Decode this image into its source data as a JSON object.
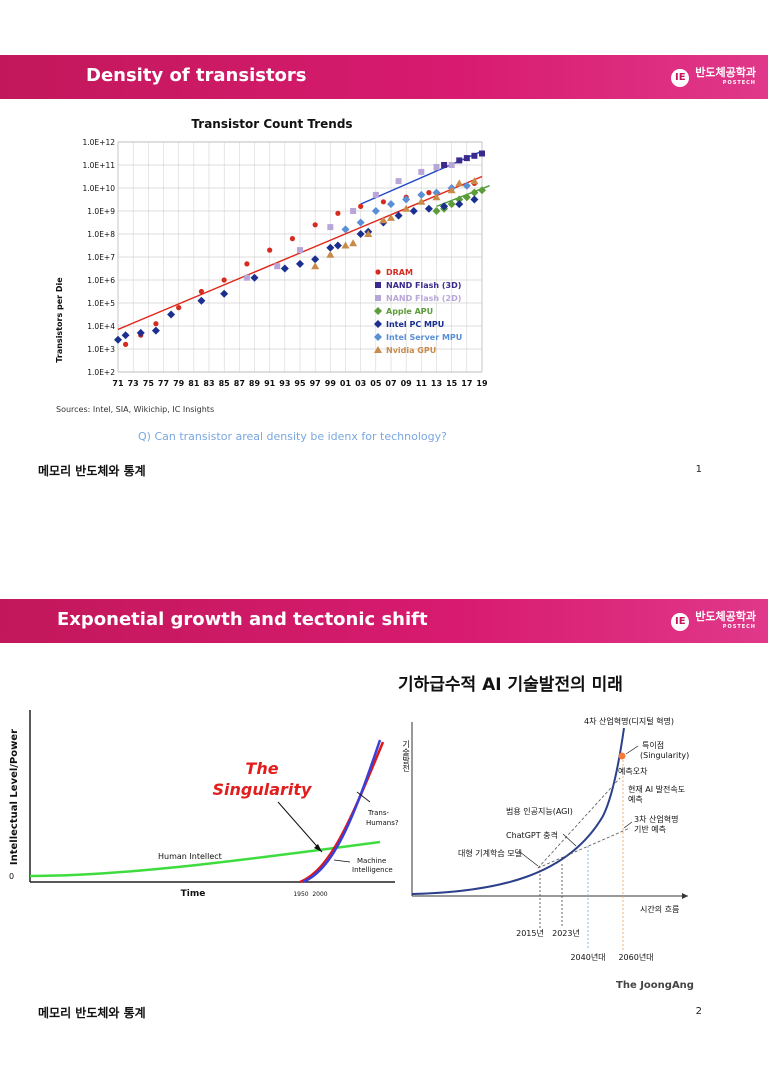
{
  "slide1": {
    "title": "Density of transistors",
    "logo_text": "반도체공학과",
    "logo_sub": "POSTECH",
    "chart_title": "Transistor Count Trends",
    "ylabel": "Transistors per Die",
    "sources": "Sources:  Intel, SIA, Wikichip, IC Insights",
    "question": "Q) Can transistor areal density be idenx for technology?",
    "footer": "메모리 반도체와 통계",
    "page": "1",
    "chart_data": {
      "type": "scatter",
      "title": "Transistor Count Trends",
      "ylabel": "Transistors per Die",
      "xlabel": "",
      "y_scale": "log",
      "y_ticks": [
        "1.0E+2",
        "1.0E+3",
        "1.0E+4",
        "1.0E+5",
        "1.0E+6",
        "1.0E+7",
        "1.0E+8",
        "1.0E+9",
        "1.0E+10",
        "1.0E+11",
        "1.0E+12"
      ],
      "x_ticks": [
        "71",
        "73",
        "75",
        "77",
        "79",
        "81",
        "83",
        "85",
        "87",
        "89",
        "91",
        "93",
        "95",
        "97",
        "99",
        "01",
        "03",
        "05",
        "07",
        "09",
        "11",
        "13",
        "15",
        "17",
        "19"
      ],
      "legend": [
        "DRAM",
        "NAND Flash (3D)",
        "NAND Flash (2D)",
        "Apple APU",
        "Intel PC MPU",
        "Intel Server MPU",
        "Nvidia GPU"
      ],
      "series": [
        {
          "name": "DRAM",
          "color": "#d62c1f",
          "marker": "circle",
          "points": [
            [
              1972,
              3.2
            ],
            [
              1974,
              3.6
            ],
            [
              1976,
              4.1
            ],
            [
              1979,
              4.8
            ],
            [
              1982,
              5.5
            ],
            [
              1985,
              6.0
            ],
            [
              1988,
              6.7
            ],
            [
              1991,
              7.3
            ],
            [
              1994,
              7.8
            ],
            [
              1997,
              8.4
            ],
            [
              2000,
              8.9
            ],
            [
              2003,
              9.2
            ],
            [
              2006,
              9.4
            ],
            [
              2009,
              9.6
            ],
            [
              2012,
              9.8
            ],
            [
              2015,
              10.0
            ],
            [
              2018,
              10.2
            ]
          ]
        },
        {
          "name": "NAND Flash (3D)",
          "color": "#3b2a8c",
          "marker": "square",
          "points": [
            [
              2013,
              10.9
            ],
            [
              2014,
              11.0
            ],
            [
              2016,
              11.2
            ],
            [
              2017,
              11.3
            ],
            [
              2018,
              11.4
            ],
            [
              2019,
              11.5
            ]
          ]
        },
        {
          "name": "NAND Flash (2D)",
          "color": "#b9a6d9",
          "marker": "square",
          "points": [
            [
              1988,
              6.1
            ],
            [
              1992,
              6.6
            ],
            [
              1995,
              7.3
            ],
            [
              1999,
              8.3
            ],
            [
              2002,
              9.0
            ],
            [
              2005,
              9.7
            ],
            [
              2008,
              10.3
            ],
            [
              2011,
              10.7
            ],
            [
              2013,
              10.9
            ],
            [
              2015,
              11.0
            ]
          ]
        },
        {
          "name": "Apple APU",
          "color": "#5d9c3a",
          "marker": "diamond",
          "points": [
            [
              2013,
              9.0
            ],
            [
              2014,
              9.1
            ],
            [
              2015,
              9.3
            ],
            [
              2016,
              9.5
            ],
            [
              2017,
              9.6
            ],
            [
              2018,
              9.8
            ],
            [
              2019,
              9.9
            ]
          ]
        },
        {
          "name": "Intel PC MPU",
          "color": "#1b2f8f",
          "marker": "diamond",
          "points": [
            [
              1971,
              3.4
            ],
            [
              1972,
              3.6
            ],
            [
              1974,
              3.7
            ],
            [
              1976,
              3.8
            ],
            [
              1978,
              4.5
            ],
            [
              1982,
              5.1
            ],
            [
              1985,
              5.4
            ],
            [
              1989,
              6.1
            ],
            [
              1993,
              6.5
            ],
            [
              1995,
              6.7
            ],
            [
              1997,
              6.9
            ],
            [
              1999,
              7.4
            ],
            [
              2000,
              7.5
            ],
            [
              2003,
              8.0
            ],
            [
              2004,
              8.1
            ],
            [
              2006,
              8.5
            ],
            [
              2008,
              8.8
            ],
            [
              2010,
              9.0
            ],
            [
              2012,
              9.1
            ],
            [
              2014,
              9.2
            ],
            [
              2016,
              9.3
            ],
            [
              2018,
              9.5
            ]
          ]
        },
        {
          "name": "Intel Server MPU",
          "color": "#5a8fd6",
          "marker": "diamond",
          "points": [
            [
              2001,
              8.2
            ],
            [
              2003,
              8.5
            ],
            [
              2005,
              9.0
            ],
            [
              2007,
              9.3
            ],
            [
              2009,
              9.5
            ],
            [
              2011,
              9.7
            ],
            [
              2013,
              9.8
            ],
            [
              2015,
              10.0
            ],
            [
              2017,
              10.1
            ]
          ]
        },
        {
          "name": "Nvidia GPU",
          "color": "#c98a4a",
          "marker": "triangle",
          "points": [
            [
              1997,
              6.6
            ],
            [
              1999,
              7.1
            ],
            [
              2001,
              7.5
            ],
            [
              2002,
              7.6
            ],
            [
              2004,
              8.0
            ],
            [
              2006,
              8.6
            ],
            [
              2007,
              8.7
            ],
            [
              2009,
              9.1
            ],
            [
              2011,
              9.4
            ],
            [
              2013,
              9.6
            ],
            [
              2015,
              9.9
            ],
            [
              2016,
              10.2
            ],
            [
              2018,
              10.3
            ]
          ]
        }
      ],
      "trendlines": [
        {
          "name": "DRAM trend",
          "color": "#e0261a",
          "from": [
            1971,
            3.85
          ],
          "to": [
            2019,
            10.5
          ]
        },
        {
          "name": "NAND trend",
          "color": "#2048c8",
          "from": [
            2003,
            9.3
          ],
          "to": [
            2019,
            11.6
          ]
        },
        {
          "name": "Apple trend",
          "color": "#4a9a3a",
          "from": [
            2013,
            9.2
          ],
          "to": [
            2020,
            10.1
          ]
        }
      ]
    }
  },
  "slide2": {
    "title": "Exponetial growth and tectonic shift",
    "logo_text": "반도체공학과",
    "logo_sub": "POSTECH",
    "footer": "메모리 반도체와 통계",
    "page": "2",
    "left_fig": {
      "ylabel": "Intellectual Level/Power",
      "zero": "0",
      "xlabel": "Time",
      "year1": "1950",
      "year2": "2000",
      "singularity_line1": "The",
      "singularity_line2": "Singularity",
      "human": "Human Intellect",
      "trans1": "Trans-",
      "trans2": "Humans?",
      "machine1": "Machine",
      "machine2": "Intelligence"
    },
    "right_fig": {
      "title": "기하급수적 AI 기술발전의 미래",
      "ylabel": "기술발전",
      "xlabel": "시간의 흐름",
      "label_4th": "4차 산업혁명(디지털 혁명)",
      "label_sing1": "특이점",
      "label_sing2": "(Singularity)",
      "label_error": "예측오차",
      "label_current1": "현재 AI 발전속도",
      "label_current2": "예측",
      "label_agi": "범용 인공지능(AGI)",
      "label_3rd1": "3차 산업혁명",
      "label_3rd2": "기반 예측",
      "label_chatgpt": "ChatGPT 충격",
      "label_ml": "대형 기계학습 모델",
      "year1": "2015년",
      "year2": "2023년",
      "year3": "2040년대",
      "year4": "2060년대",
      "source": "The JoongAng"
    }
  }
}
